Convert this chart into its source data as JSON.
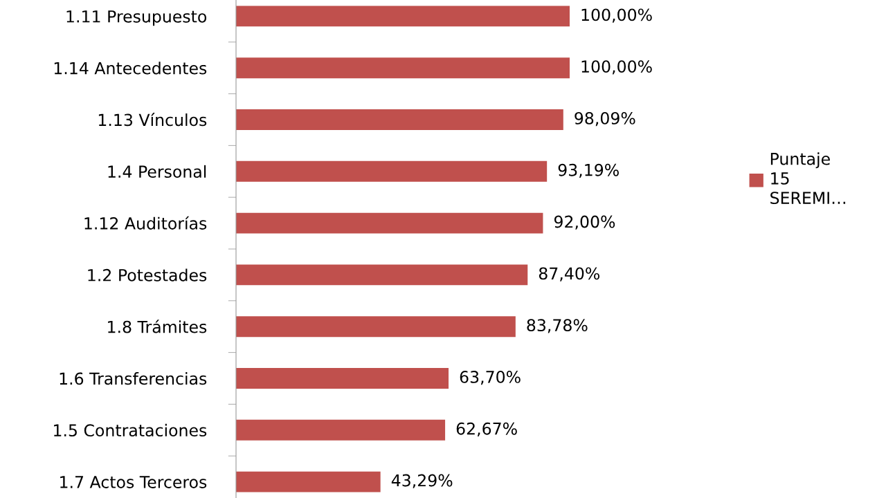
{
  "chart_data": {
    "type": "bar",
    "orientation": "horizontal",
    "categories": [
      "1.11 Presupuesto",
      "1.14 Antecedentes",
      "1.13 Vínculos",
      "1.4 Personal",
      "1.12 Auditorías",
      "1.2 Potestades",
      "1.8 Trámites",
      "1.6 Transferencias",
      "1.5 Contrataciones",
      "1.7 Actos Terceros"
    ],
    "series": [
      {
        "name": "Puntaje 15 SEREMI…",
        "color": "#c0504d",
        "values": [
          100.0,
          100.0,
          98.09,
          93.19,
          92.0,
          87.4,
          83.78,
          63.7,
          62.67,
          43.29
        ],
        "value_labels": [
          "100,00%",
          "100,00%",
          "98,09%",
          "93,19%",
          "92,00%",
          "87,40%",
          "83,78%",
          "63,70%",
          "62,67%",
          "43,29%"
        ]
      }
    ],
    "grid": false,
    "legend": "right"
  }
}
